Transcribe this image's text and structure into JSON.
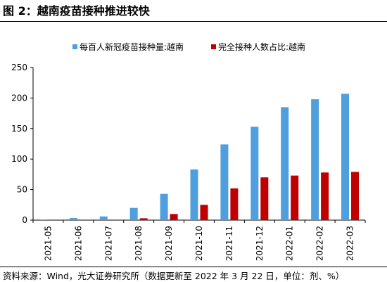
{
  "header": {
    "title": "图 2：越南疫苗接种推进较快"
  },
  "footer": {
    "source": "资料来源：Wind，光大证券研究所（数据更新至 2022 年 3 月 22 日，单位：剂、%）"
  },
  "chart_data": {
    "type": "bar",
    "categories": [
      "2021-05",
      "2021-06",
      "2021-07",
      "2021-08",
      "2021-09",
      "2021-10",
      "2021-11",
      "2021-12",
      "2022-01",
      "2022-02",
      "2022-03"
    ],
    "series": [
      {
        "name": "每百人新冠疫苗接种量:越南",
        "color": "#4f9fdf",
        "values": [
          1,
          3.5,
          6,
          20,
          43,
          83,
          124,
          153,
          185,
          198,
          207
        ]
      },
      {
        "name": "完全接种人数占比:越南",
        "color": "#c00000",
        "values": [
          0,
          0,
          0,
          3,
          10,
          25,
          52,
          70,
          73,
          78,
          79
        ]
      }
    ],
    "ylim": [
      0,
      250
    ],
    "yticks": [
      0,
      50,
      100,
      150,
      200,
      250
    ],
    "grid": false,
    "legend_position": "top-center"
  }
}
